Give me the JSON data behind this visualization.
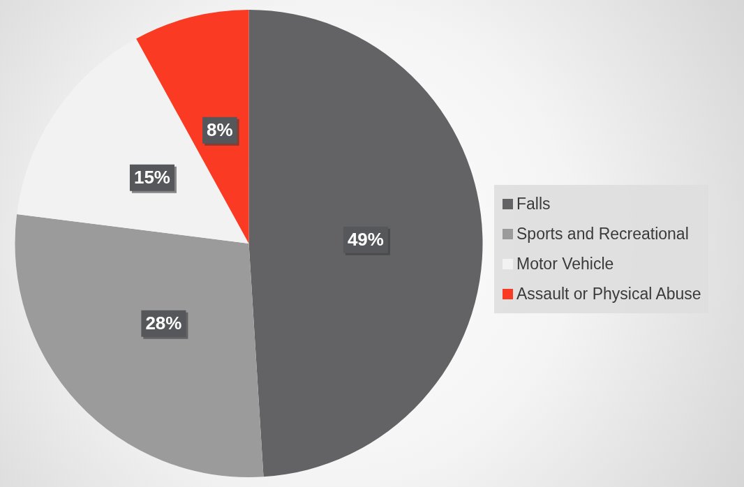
{
  "chart_data": {
    "type": "pie",
    "categories": [
      "Falls",
      "Sports and Recreational",
      "Motor Vehicle",
      "Assault or Physical Abuse"
    ],
    "values": [
      49,
      28,
      15,
      8
    ],
    "colors": [
      "#636366",
      "#9b9b9b",
      "#f2f2f2",
      "#fa3a22"
    ],
    "value_labels": [
      "49%",
      "28%",
      "15%",
      "8%"
    ],
    "legend": "right"
  }
}
